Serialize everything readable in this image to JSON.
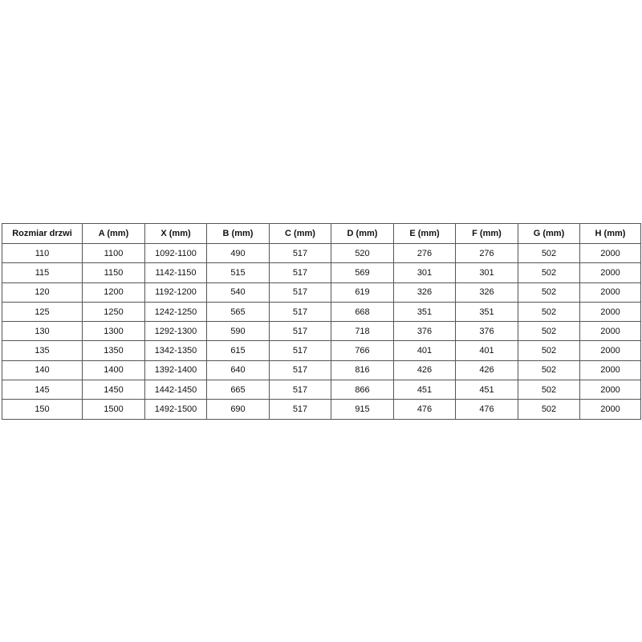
{
  "table": {
    "header": [
      "Rozmiar drzwi",
      "A (mm)",
      "X (mm)",
      "B (mm)",
      "C (mm)",
      "D (mm)",
      "E (mm)",
      "F (mm)",
      "G (mm)",
      "H (mm)"
    ],
    "rows": [
      [
        110,
        1100,
        "1092-1100",
        490,
        517,
        520,
        276,
        276,
        502,
        2000
      ],
      [
        115,
        1150,
        "1142-1150",
        515,
        517,
        569,
        301,
        301,
        502,
        2000
      ],
      [
        120,
        1200,
        "1192-1200",
        540,
        517,
        619,
        326,
        326,
        502,
        2000
      ],
      [
        125,
        1250,
        "1242-1250",
        565,
        517,
        668,
        351,
        351,
        502,
        2000
      ],
      [
        130,
        1300,
        "1292-1300",
        590,
        517,
        718,
        376,
        376,
        502,
        2000
      ],
      [
        135,
        1350,
        "1342-1350",
        615,
        517,
        766,
        401,
        401,
        502,
        2000
      ],
      [
        140,
        1400,
        "1392-1400",
        640,
        517,
        816,
        426,
        426,
        502,
        2000
      ],
      [
        145,
        1450,
        "1442-1450",
        665,
        517,
        866,
        451,
        451,
        502,
        2000
      ],
      [
        150,
        1500,
        "1492-1500",
        690,
        517,
        915,
        476,
        476,
        502,
        2000
      ]
    ]
  }
}
